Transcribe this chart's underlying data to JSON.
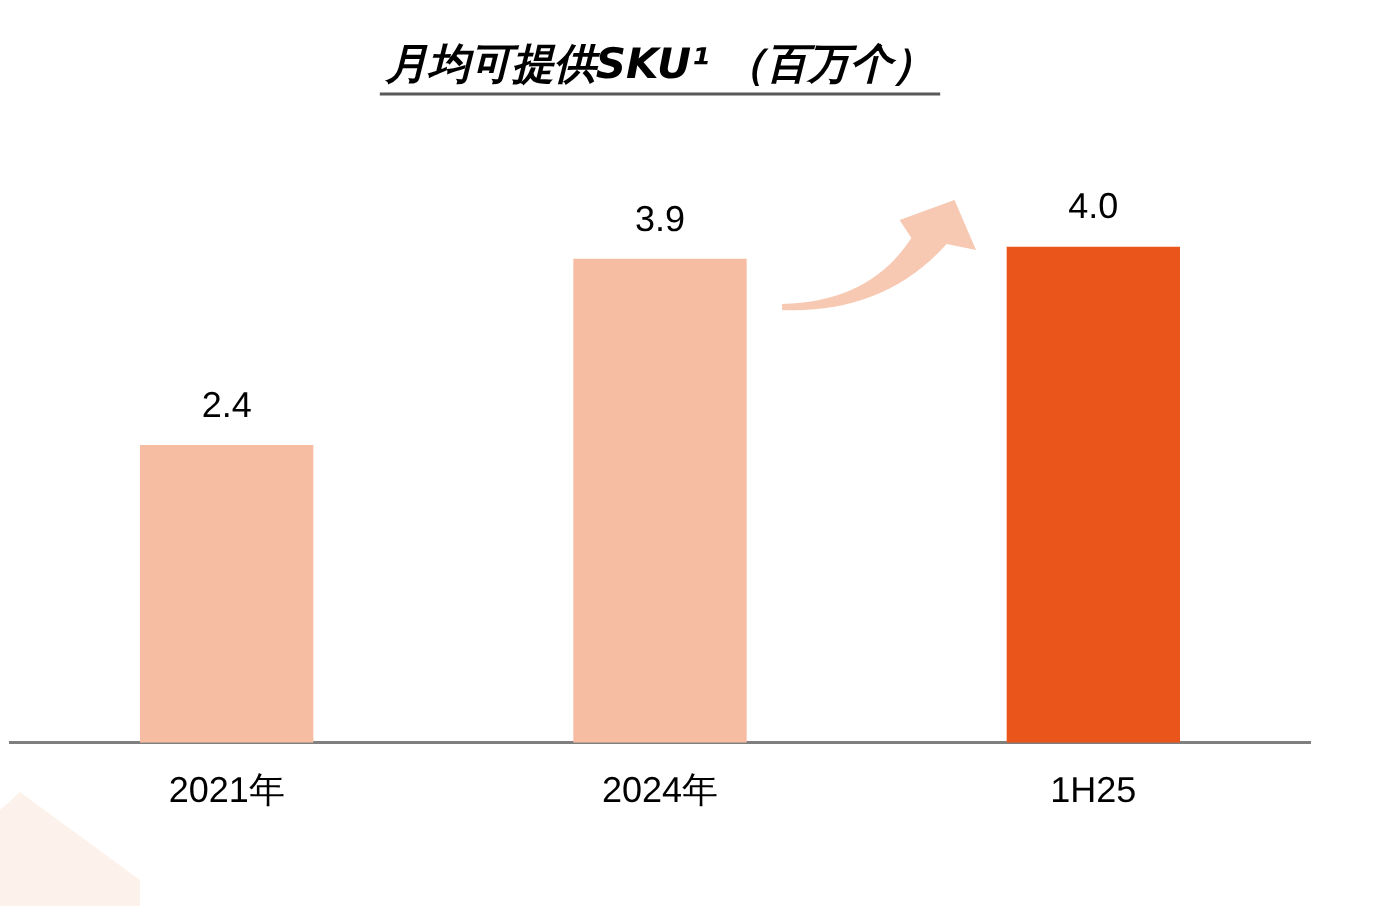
{
  "chart_data": {
    "type": "bar",
    "title": "月均可提供SKU¹ （百万个）",
    "categories": [
      "2021年",
      "2024年",
      "1H25"
    ],
    "values": [
      2.4,
      3.9,
      4.0
    ],
    "value_labels": [
      "2.4",
      "3.9",
      "4.0"
    ],
    "colors": [
      "#f6bda3",
      "#f6bda3",
      "#e9551a"
    ],
    "tick_labels": "x",
    "grid": false,
    "legend": false
  }
}
